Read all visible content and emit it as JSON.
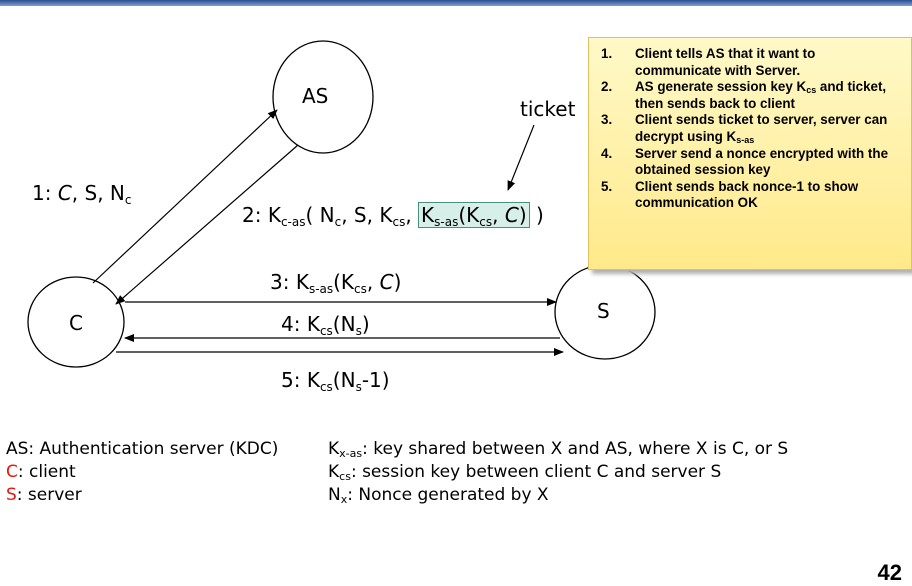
{
  "nodes": {
    "as": "AS",
    "c": "C",
    "s": "S"
  },
  "messages": {
    "m1": {
      "prefix": "1: ",
      "c": "C",
      "rest": ", S, N",
      "sub": "c"
    },
    "m2": {
      "prefix": "2: K",
      "sub1": "c-as",
      "part2": "( N",
      "sub2": "c",
      "part3": ", S, K",
      "sub3": "cs",
      "part4": ", ",
      "ticket_k": "K",
      "ticket_sub": "s-as",
      "ticket_open": "(K",
      "ticket_sub2": "cs",
      "ticket_close": ", ",
      "ticket_c": "C",
      "ticket_end": ")",
      "close": " )"
    },
    "m3": {
      "prefix": "3: K",
      "sub1": "s-as",
      "part2": "(K",
      "sub2": "cs",
      "part3": ", ",
      "c": "C",
      "close": ")"
    },
    "m4": {
      "prefix": "4: K",
      "sub1": "cs",
      "part2": "(N",
      "sub2": "s",
      "close": ")"
    },
    "m5": {
      "prefix": "5: K",
      "sub1": "cs",
      "part2": "(N",
      "sub2": "s",
      "close": "-1)"
    }
  },
  "ticket_label": "ticket",
  "note": {
    "items": [
      {
        "num": "1.",
        "text": "Client tells AS that it want to communicate with Server."
      },
      {
        "num": "2.",
        "text_a": "AS generate session key K",
        "sub": "cs",
        "text_b": " and ticket, then sends back to client"
      },
      {
        "num": "3.",
        "text_a": "Client sends ticket to server, server can decrypt using K",
        "sub": "s-as"
      },
      {
        "num": "4.",
        "text": "Server send a nonce encrypted with the obtained session key"
      },
      {
        "num": "5.",
        "text": "Client sends back nonce-1 to show communication OK"
      }
    ]
  },
  "legend": {
    "as_def": "AS: Authentication server (KDC)",
    "c_key": "C",
    "c_def": ": client",
    "s_key": "S",
    "s_def": ": server",
    "kxas_k": "K",
    "kxas_sub": "x-as",
    "kxas_def": ": key shared between X and AS, where X is C, or S",
    "kcs_k": "K",
    "kcs_sub": "cs",
    "kcs_def": ": session key between client C and server S",
    "nx_n": "N",
    "nx_sub": "x",
    "nx_def": ": Nonce generated by X"
  },
  "page_number": "42",
  "colors": {
    "accent_red": "#e8170e",
    "note_bg": "#ffe98a",
    "ticket_bg": "#d7efe9"
  }
}
